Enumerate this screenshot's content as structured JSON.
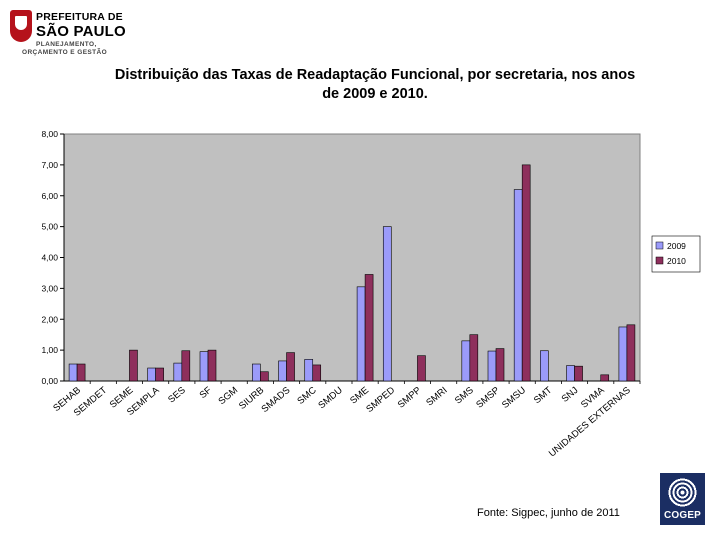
{
  "header": {
    "org_line1": "PREFEITURA DE",
    "org_line2": "SÃO PAULO",
    "org_line3": "PLANEJAMENTO,",
    "org_line4": "ORÇAMENTO E GESTÃO"
  },
  "title_line1": "Distribuição das Taxas de Readaptação Funcional, por secretaria, nos anos",
  "title_line2": "de 2009 e 2010.",
  "footer": {
    "source": "Fonte: Sigpec, junho de 2011"
  },
  "brand": {
    "text": "COGEP"
  },
  "colors": {
    "series_2009": "#9b9bfa",
    "series_2010": "#8e2f5c",
    "plot_bg": "#c0c0c0"
  },
  "chart_data": {
    "type": "bar",
    "title": "Distribuição das Taxas de Readaptação Funcional, por secretaria, nos anos de 2009 e 2010.",
    "xlabel": "",
    "ylabel": "",
    "ylim": [
      0,
      8
    ],
    "yticks": [
      "0,00",
      "1,00",
      "2,00",
      "3,00",
      "4,00",
      "5,00",
      "6,00",
      "7,00",
      "8,00"
    ],
    "grid": false,
    "legend_position": "right",
    "categories": [
      "SEHAB",
      "SEMDET",
      "SEME",
      "SEMPLA",
      "SES",
      "SF",
      "SGM",
      "SIURB",
      "SMADS",
      "SMC",
      "SMDU",
      "SME",
      "SMPED",
      "SMPP",
      "SMRI",
      "SMS",
      "SMSP",
      "SMSU",
      "SMT",
      "SNJ",
      "SVMA",
      "UNIDADES EXTERNAS"
    ],
    "series": [
      {
        "name": "2009",
        "values": [
          0.55,
          0,
          0,
          0.42,
          0.58,
          0.95,
          0,
          0.55,
          0.65,
          0.7,
          0,
          3.05,
          5.0,
          0,
          0,
          1.3,
          0.97,
          6.2,
          0.98,
          0.5,
          0,
          1.75
        ]
      },
      {
        "name": "2010",
        "values": [
          0.55,
          0,
          1.0,
          0.42,
          0.98,
          1.0,
          0,
          0.3,
          0.92,
          0.52,
          0,
          3.45,
          0,
          0.82,
          0,
          1.5,
          1.05,
          7.0,
          0,
          0.48,
          0.2,
          1.82
        ]
      }
    ]
  }
}
